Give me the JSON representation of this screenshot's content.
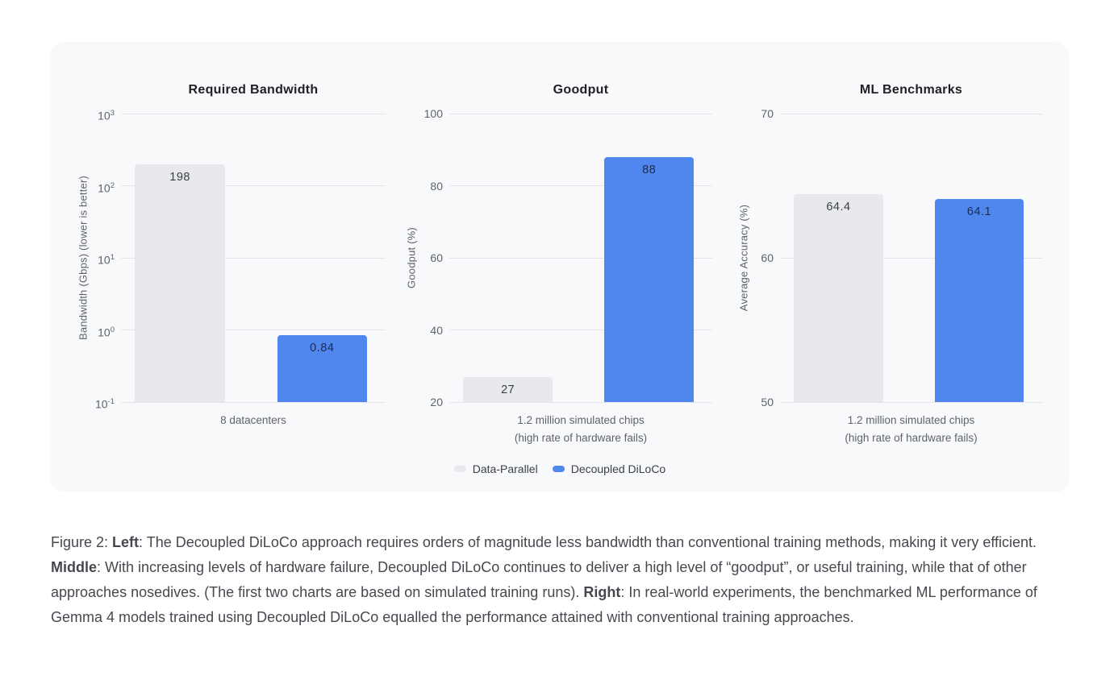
{
  "colors": {
    "page_bg": "#ffffff",
    "card_bg": "#f8f9fb",
    "grid": "#e3e5e8",
    "tick_text": "#5f6368",
    "title_text": "#202124",
    "caption_text": "#45494f",
    "bar_gray": "#e7e9ec",
    "bar_blue": "#4f87ee"
  },
  "legend": {
    "position": "bottom-center",
    "items": [
      {
        "label": "Data-Parallel",
        "color": "#e7e9ec"
      },
      {
        "label": "Decoupled DiLoCo",
        "color": "#4f87ee"
      }
    ]
  },
  "chart_data": [
    {
      "type": "bar",
      "title": "Required Bandwidth",
      "xlabel": "",
      "ylabel": "Bandwidth (Gbps) (lower is better)",
      "yscale": "log",
      "ylim": [
        0.1,
        1000
      ],
      "grid": true,
      "yticks": [
        {
          "value": 1000,
          "label": "10^3"
        },
        {
          "value": 100,
          "label": "10^2"
        },
        {
          "value": 10,
          "label": "10^1"
        },
        {
          "value": 1,
          "label": "10^0"
        },
        {
          "value": 0.1,
          "label": "10^-1"
        }
      ],
      "categories": [
        "8 datacenters"
      ],
      "series": [
        {
          "name": "Data-Parallel",
          "values": [
            198
          ],
          "color": "#e7e9ec",
          "label_color": "#3c4043"
        },
        {
          "name": "Decoupled DiLoCo",
          "values": [
            0.84
          ],
          "color": "#4f87ee",
          "label_color": "#1e2b4d"
        }
      ]
    },
    {
      "type": "bar",
      "title": "Goodput",
      "xlabel": "",
      "ylabel": "Goodput (%)",
      "yscale": "linear",
      "ylim": [
        20,
        100
      ],
      "grid": true,
      "yticks": [
        {
          "value": 100,
          "label": "100"
        },
        {
          "value": 80,
          "label": "80"
        },
        {
          "value": 60,
          "label": "60"
        },
        {
          "value": 40,
          "label": "40"
        },
        {
          "value": 20,
          "label": "20"
        }
      ],
      "categories": [
        "1.2 million simulated chips\n(high rate of hardware fails)"
      ],
      "series": [
        {
          "name": "Data-Parallel",
          "values": [
            27
          ],
          "color": "#e7e9ec",
          "label_color": "#3c4043"
        },
        {
          "name": "Decoupled DiLoCo",
          "values": [
            88
          ],
          "color": "#4f87ee",
          "label_color": "#1e2b4d"
        }
      ]
    },
    {
      "type": "bar",
      "title": "ML Benchmarks",
      "xlabel": "",
      "ylabel": "Average Accuracy (%)",
      "yscale": "linear",
      "ylim": [
        50,
        70
      ],
      "grid": true,
      "yticks": [
        {
          "value": 70,
          "label": "70"
        },
        {
          "value": 60,
          "label": "60"
        },
        {
          "value": 50,
          "label": "50"
        }
      ],
      "categories": [
        "1.2 million simulated chips\n(high rate of hardware fails)"
      ],
      "series": [
        {
          "name": "Data-Parallel",
          "values": [
            64.4
          ],
          "color": "#e7e9ec",
          "label_color": "#3c4043"
        },
        {
          "name": "Decoupled DiLoCo",
          "values": [
            64.1
          ],
          "color": "#4f87ee",
          "label_color": "#1e2b4d"
        }
      ]
    }
  ],
  "caption": {
    "segments": [
      {
        "text": "Figure 2: ",
        "bold": false
      },
      {
        "text": "Left",
        "bold": true
      },
      {
        "text": ": The Decoupled DiLoCo approach requires orders of magnitude less bandwidth than conventional training methods, making it very efficient. ",
        "bold": false
      },
      {
        "text": "Middle",
        "bold": true
      },
      {
        "text": ": With increasing levels of hardware failure, Decoupled DiLoCo continues to deliver a high level of “goodput”, or useful training, while that of other approaches nosedives. (The first two charts are based on simulated training runs). ",
        "bold": false
      },
      {
        "text": "Right",
        "bold": true
      },
      {
        "text": ": In real-world experiments, the benchmarked ML performance of Gemma 4 models trained using Decoupled DiLoCo equalled the performance attained with conventional training approaches.",
        "bold": false
      }
    ]
  }
}
